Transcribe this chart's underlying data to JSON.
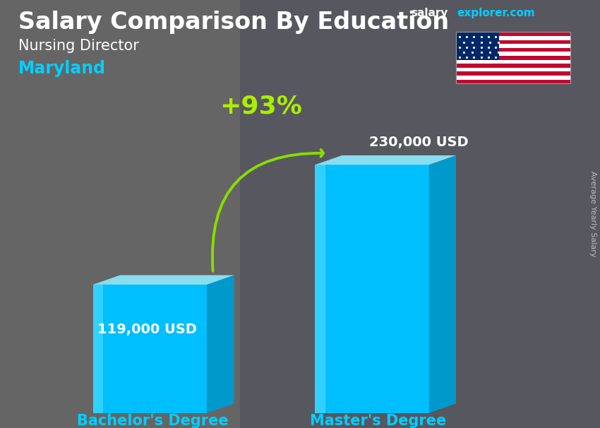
{
  "title_main": "Salary Comparison By Education",
  "subtitle1": "Nursing Director",
  "subtitle2": "Maryland",
  "site_text_salary": "salary",
  "site_text_explorer": "explorer.com",
  "ylabel": "Average Yearly Salary",
  "categories": [
    "Bachelor's Degree",
    "Master's Degree"
  ],
  "values": [
    119000,
    230000
  ],
  "value_labels": [
    "119,000 USD",
    "230,000 USD"
  ],
  "pct_change": "+93%",
  "bar_face_color": "#00BFFF",
  "bar_top_color": "#88DDEE",
  "bar_side_color": "#0099CC",
  "bar_highlight_color": "#55DDFF",
  "title_color": "#FFFFFF",
  "subtitle1_color": "#FFFFFF",
  "subtitle2_color": "#00CFFF",
  "category_label_color": "#00CFFF",
  "value_label_color": "#FFFFFF",
  "pct_color": "#AAEE00",
  "arrow_color": "#88DD00",
  "site_color_salary": "#FFFFFF",
  "site_color_explorer": "#00CFFF",
  "bg_color": "#555555",
  "title_fontsize": 24,
  "subtitle1_fontsize": 15,
  "subtitle2_fontsize": 17,
  "category_fontsize": 15,
  "value_fontsize": 14,
  "pct_fontsize": 26,
  "ylabel_fontsize": 8,
  "bar_positions": [
    2.5,
    6.2
  ],
  "bar_width": 1.9,
  "bar_depth": 0.45,
  "bar_depth_vert": 0.22,
  "baseline": 0.35,
  "max_bar_height": 5.8
}
